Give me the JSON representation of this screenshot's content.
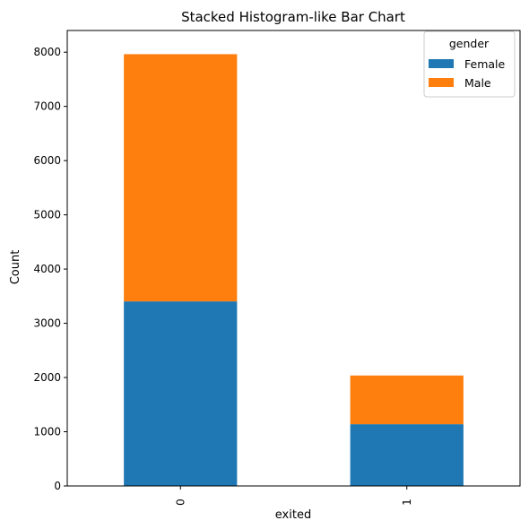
{
  "chart_data": {
    "type": "bar",
    "stacked": true,
    "title": "Stacked Histogram-like Bar Chart",
    "xlabel": "exited",
    "ylabel": "Count",
    "categories": [
      "0",
      "1"
    ],
    "series": [
      {
        "name": "Female",
        "values": [
          3404,
          1139
        ],
        "color": "#1f77b4"
      },
      {
        "name": "Male",
        "values": [
          4559,
          898
        ],
        "color": "#ff7f0e"
      }
    ],
    "ylim": [
      0,
      8400
    ],
    "yticks": [
      0,
      1000,
      2000,
      3000,
      4000,
      5000,
      6000,
      7000,
      8000
    ],
    "grid": false,
    "legend": {
      "title": "gender",
      "placement": "top-right"
    }
  }
}
